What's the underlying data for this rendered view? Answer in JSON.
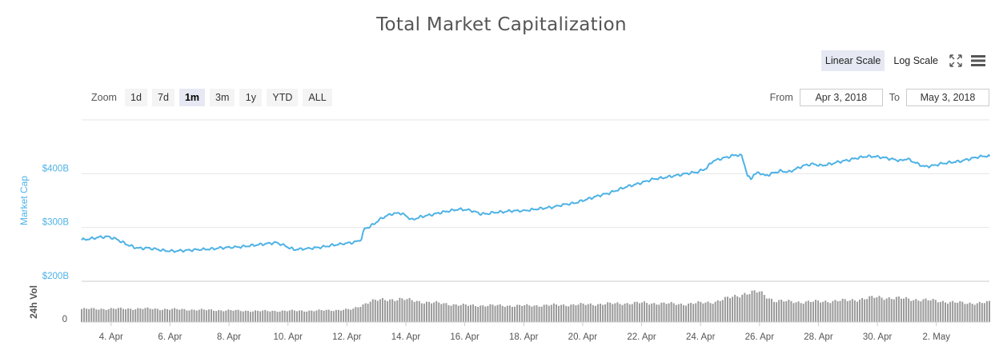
{
  "header": {
    "title": "Total Market Capitalization"
  },
  "scale": {
    "linear_label": "Linear Scale",
    "log_label": "Log Scale",
    "active": "linear"
  },
  "zoom": {
    "label": "Zoom",
    "buttons": [
      "1d",
      "7d",
      "1m",
      "3m",
      "1y",
      "YTD",
      "ALL"
    ],
    "active": "1m"
  },
  "range": {
    "from_label": "From",
    "from_value": "Apr 3, 2018",
    "to_label": "To",
    "to_value": "May 3, 2018"
  },
  "colors": {
    "line": "#4eb2e5",
    "volume": "#888888",
    "grid": "#e6e6e6",
    "axis_label": "#4eb2e5"
  },
  "chart_data": {
    "type": "line",
    "title": "Total Market Capitalization",
    "y_axis": {
      "label": "Market Cap",
      "ticks": [
        "$200B",
        "$300B",
        "$400B"
      ],
      "tick_values": [
        200,
        300,
        400
      ],
      "range": [
        200,
        500
      ],
      "unit": "billion USD"
    },
    "x_axis": {
      "ticks": [
        "4. Apr",
        "6. Apr",
        "8. Apr",
        "10. Apr",
        "12. Apr",
        "14. Apr",
        "16. Apr",
        "18. Apr",
        "20. Apr",
        "22. Apr",
        "24. Apr",
        "26. Apr",
        "28. Apr",
        "30. Apr",
        "2. May"
      ],
      "range_days": [
        3.0,
        33.8
      ]
    },
    "series": [
      {
        "name": "Market Cap",
        "x_day": [
          3.0,
          3.3,
          3.6,
          3.9,
          4.2,
          4.4,
          4.6,
          4.8,
          5.0,
          5.2,
          5.5,
          5.8,
          6.1,
          6.4,
          6.7,
          7.0,
          7.4,
          7.7,
          8.0,
          8.4,
          8.7,
          9.0,
          9.3,
          9.6,
          9.9,
          10.1,
          10.2,
          10.5,
          10.9,
          11.2,
          11.5,
          11.9,
          12.2,
          12.4,
          12.5,
          12.6,
          12.8,
          13.0,
          13.2,
          13.5,
          13.8,
          14.0,
          14.2,
          14.4,
          14.6,
          14.9,
          15.2,
          15.5,
          15.8,
          16.2,
          16.5,
          16.7,
          17.0,
          17.3,
          17.6,
          18.0,
          18.4,
          18.7,
          19.0,
          19.4,
          19.7,
          20.0,
          20.3,
          20.6,
          20.9,
          21.2,
          21.5,
          21.8,
          22.1,
          22.4,
          22.7,
          23.0,
          23.3,
          23.6,
          23.9,
          24.2,
          24.4,
          24.7,
          25.0,
          25.2,
          25.4,
          25.5,
          25.6,
          25.7,
          25.8,
          26.0,
          26.2,
          26.4,
          26.7,
          27.0,
          27.2,
          27.5,
          27.8,
          28.1,
          28.4,
          28.7,
          29.0,
          29.3,
          29.6,
          29.9,
          30.2,
          30.5,
          30.8,
          31.0,
          31.3,
          31.6,
          31.9,
          32.2,
          32.5,
          32.8,
          33.1,
          33.4,
          33.7,
          33.8
        ],
        "y_billions": [
          277,
          279,
          282,
          283,
          278,
          272,
          267,
          263,
          261,
          262,
          260,
          257,
          256,
          257,
          258,
          259,
          260,
          262,
          263,
          264,
          266,
          268,
          270,
          272,
          266,
          261,
          259,
          260,
          262,
          264,
          267,
          270,
          272,
          275,
          280,
          298,
          302,
          310,
          318,
          325,
          327,
          322,
          314,
          318,
          321,
          324,
          328,
          331,
          334,
          332,
          326,
          325,
          328,
          329,
          331,
          331,
          334,
          336,
          338,
          343,
          345,
          350,
          355,
          360,
          364,
          370,
          376,
          380,
          385,
          390,
          392,
          395,
          398,
          401,
          403,
          410,
          423,
          428,
          432,
          435,
          433,
          415,
          395,
          390,
          398,
          402,
          396,
          400,
          405,
          403,
          408,
          415,
          418,
          415,
          418,
          422,
          425,
          429,
          432,
          432,
          430,
          427,
          424,
          428,
          420,
          413,
          415,
          419,
          421,
          423,
          427,
          431,
          433,
          432
        ],
        "color": "#4eb2e5"
      }
    ],
    "volume": {
      "label": "24h Vol",
      "ticks": [
        "0"
      ],
      "x_day": [
        3.0,
        5.0,
        7.0,
        9.0,
        11.0,
        12.2,
        12.8,
        13.8,
        14.5,
        16.0,
        18.0,
        20.0,
        22.0,
        23.5,
        24.5,
        25.5,
        26.0,
        26.5,
        27.5,
        29.0,
        30.0,
        31.0,
        32.0,
        33.0,
        33.8
      ],
      "relative_level": [
        0.32,
        0.33,
        0.3,
        0.27,
        0.28,
        0.31,
        0.52,
        0.57,
        0.5,
        0.41,
        0.4,
        0.43,
        0.47,
        0.44,
        0.5,
        0.7,
        0.74,
        0.52,
        0.49,
        0.53,
        0.61,
        0.57,
        0.52,
        0.46,
        0.48
      ],
      "color": "#888888"
    },
    "grid": true,
    "legend": "none"
  }
}
